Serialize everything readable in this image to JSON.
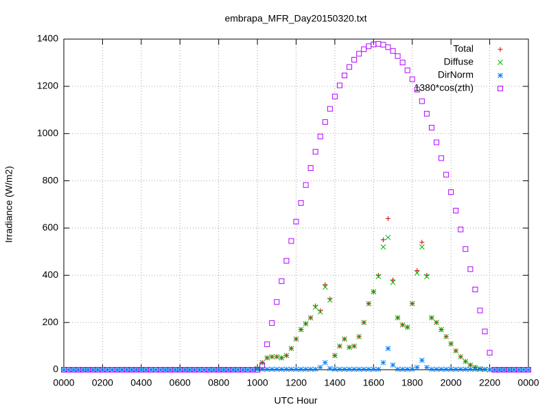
{
  "chart_data": {
    "type": "scatter",
    "title": "embrapa_MFR_Day20150320.txt",
    "x_label": "UTC Hour",
    "y_label": "Irradiance (W/m2)",
    "xlim": [
      0,
      24
    ],
    "ylim": [
      0,
      1400
    ],
    "grid": true,
    "legend": "top-right",
    "xticks": [
      {
        "value": 0,
        "label": "0000"
      },
      {
        "value": 2,
        "label": "0200"
      },
      {
        "value": 4,
        "label": "0400"
      },
      {
        "value": 6,
        "label": "0600"
      },
      {
        "value": 8,
        "label": "0800"
      },
      {
        "value": 10,
        "label": "1000"
      },
      {
        "value": 12,
        "label": "1200"
      },
      {
        "value": 14,
        "label": "1400"
      },
      {
        "value": 16,
        "label": "1600"
      },
      {
        "value": 18,
        "label": "1800"
      },
      {
        "value": 20,
        "label": "2000"
      },
      {
        "value": 22,
        "label": "2200"
      },
      {
        "value": 24,
        "label": "0000"
      }
    ],
    "yticks": [
      0,
      200,
      400,
      600,
      800,
      1000,
      1200,
      1400
    ],
    "x": [
      0,
      0.25,
      0.5,
      0.75,
      1,
      1.25,
      1.5,
      1.75,
      2,
      2.25,
      2.5,
      2.75,
      3,
      3.25,
      3.5,
      3.75,
      4,
      4.25,
      4.5,
      4.75,
      5,
      5.25,
      5.5,
      5.75,
      6,
      6.25,
      6.5,
      6.75,
      7,
      7.25,
      7.5,
      7.75,
      8,
      8.25,
      8.5,
      8.75,
      9,
      9.25,
      9.5,
      9.75,
      10,
      10.25,
      10.5,
      10.75,
      11,
      11.25,
      11.5,
      11.75,
      12,
      12.25,
      12.5,
      12.75,
      13,
      13.25,
      13.5,
      13.75,
      14,
      14.25,
      14.5,
      14.75,
      15,
      15.25,
      15.5,
      15.75,
      16,
      16.25,
      16.5,
      16.75,
      17,
      17.25,
      17.5,
      17.75,
      18,
      18.25,
      18.5,
      18.75,
      19,
      19.25,
      19.5,
      19.75,
      20,
      20.25,
      20.5,
      20.75,
      21,
      21.25,
      21.5,
      21.75,
      22,
      22.25,
      22.5,
      22.75,
      23,
      23.25,
      23.5,
      23.75,
      24
    ],
    "series": [
      {
        "name": "Total",
        "color": "#cc0000",
        "marker": "plus",
        "values": [
          0,
          0,
          0,
          0,
          0,
          0,
          0,
          0,
          0,
          0,
          0,
          0,
          0,
          0,
          0,
          0,
          0,
          0,
          0,
          0,
          0,
          0,
          0,
          0,
          0,
          0,
          0,
          0,
          0,
          0,
          0,
          0,
          0,
          0,
          0,
          0,
          0,
          0,
          0,
          0,
          5,
          30,
          50,
          55,
          55,
          50,
          60,
          90,
          130,
          170,
          195,
          220,
          270,
          250,
          360,
          300,
          60,
          100,
          130,
          95,
          100,
          140,
          200,
          280,
          330,
          400,
          550,
          640,
          380,
          220,
          190,
          180,
          280,
          420,
          540,
          400,
          220,
          200,
          170,
          140,
          110,
          80,
          55,
          35,
          20,
          10,
          4,
          1,
          0,
          0,
          0,
          0,
          0,
          0,
          0,
          0,
          0
        ]
      },
      {
        "name": "Diffuse",
        "color": "#00b000",
        "marker": "cross",
        "values": [
          0,
          0,
          0,
          0,
          0,
          0,
          0,
          0,
          0,
          0,
          0,
          0,
          0,
          0,
          0,
          0,
          0,
          0,
          0,
          0,
          0,
          0,
          0,
          0,
          0,
          0,
          0,
          0,
          0,
          0,
          0,
          0,
          0,
          0,
          0,
          0,
          0,
          0,
          0,
          0,
          5,
          30,
          50,
          55,
          55,
          50,
          60,
          90,
          130,
          170,
          195,
          220,
          265,
          245,
          350,
          295,
          60,
          100,
          130,
          95,
          100,
          140,
          200,
          280,
          330,
          395,
          520,
          560,
          370,
          220,
          190,
          180,
          280,
          410,
          520,
          395,
          220,
          200,
          170,
          140,
          110,
          80,
          55,
          35,
          20,
          10,
          4,
          1,
          0,
          0,
          0,
          0,
          0,
          0,
          0,
          0,
          0
        ]
      },
      {
        "name": "DirNorm",
        "color": "#0080ff",
        "marker": "star",
        "values": [
          0,
          0,
          0,
          0,
          0,
          0,
          0,
          0,
          0,
          0,
          0,
          0,
          0,
          0,
          0,
          0,
          0,
          0,
          0,
          0,
          0,
          0,
          0,
          0,
          0,
          0,
          0,
          0,
          0,
          0,
          0,
          0,
          0,
          0,
          0,
          0,
          0,
          0,
          0,
          0,
          2,
          2,
          2,
          2,
          2,
          2,
          2,
          2,
          2,
          2,
          2,
          2,
          2,
          10,
          30,
          5,
          2,
          2,
          2,
          2,
          2,
          2,
          2,
          2,
          2,
          2,
          30,
          90,
          20,
          2,
          2,
          2,
          2,
          10,
          40,
          10,
          2,
          2,
          2,
          2,
          2,
          2,
          2,
          2,
          2,
          2,
          2,
          2,
          0,
          0,
          0,
          0,
          0,
          0,
          0,
          0,
          0
        ]
      },
      {
        "name": "1380*cos(zth)",
        "color": "#b000ff",
        "marker": "square",
        "values": [
          0,
          0,
          0,
          0,
          0,
          0,
          0,
          0,
          0,
          0,
          0,
          0,
          0,
          0,
          0,
          0,
          0,
          0,
          0,
          0,
          0,
          0,
          0,
          0,
          0,
          0,
          0,
          0,
          0,
          0,
          0,
          0,
          0,
          0,
          0,
          0,
          0,
          0,
          0,
          0,
          0,
          18,
          108,
          198,
          287,
          375,
          461,
          545,
          627,
          706,
          782,
          854,
          923,
          988,
          1049,
          1105,
          1157,
          1204,
          1246,
          1282,
          1313,
          1338,
          1357,
          1370,
          1378,
          1380,
          1376,
          1366,
          1350,
          1328,
          1301,
          1268,
          1230,
          1186,
          1137,
          1084,
          1025,
          963,
          896,
          826,
          752,
          674,
          594,
          511,
          426,
          340,
          251,
          162,
          72,
          0,
          0,
          0,
          0,
          0,
          0,
          0,
          0
        ]
      }
    ]
  }
}
